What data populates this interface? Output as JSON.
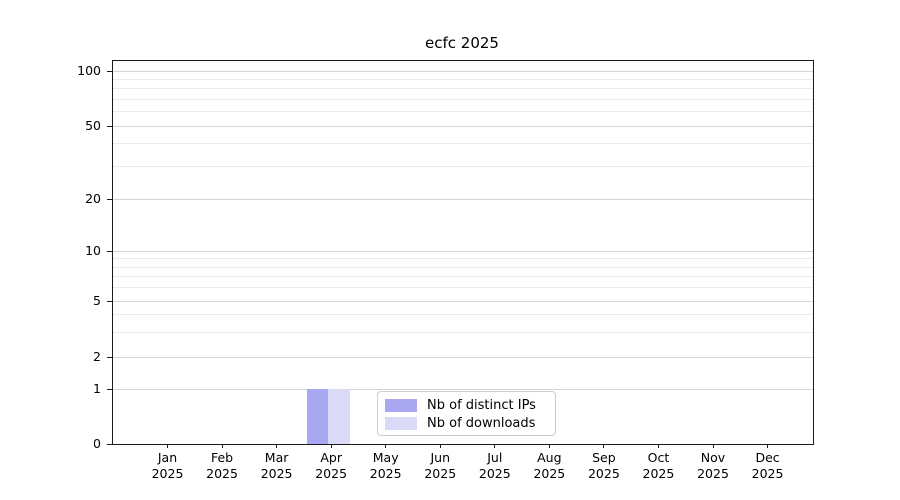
{
  "chart_data": {
    "type": "bar",
    "title": "ecfc 2025",
    "categories": [
      "Jan 2025",
      "Feb 2025",
      "Mar 2025",
      "Apr 2025",
      "May 2025",
      "Jun 2025",
      "Jul 2025",
      "Aug 2025",
      "Sep 2025",
      "Oct 2025",
      "Nov 2025",
      "Dec 2025"
    ],
    "series": [
      {
        "name": "Nb of distinct IPs",
        "color": "#a7a7f2",
        "values": [
          0,
          0,
          0,
          1,
          0,
          0,
          0,
          0,
          0,
          0,
          0,
          0
        ]
      },
      {
        "name": "Nb of downloads",
        "color": "#dadaf8",
        "values": [
          0,
          0,
          0,
          1,
          0,
          0,
          0,
          0,
          0,
          0,
          0,
          0
        ]
      }
    ],
    "xlabel": "",
    "ylabel": "",
    "yscale": "symlog",
    "ytick_values": [
      0,
      1,
      2,
      5,
      10,
      20,
      50,
      100
    ],
    "yminor_values": [
      3,
      4,
      6,
      7,
      8,
      9,
      30,
      40,
      60,
      70,
      80,
      90
    ],
    "ylim": [
      0,
      115
    ],
    "grid": "horizontal major and minor, light gray",
    "legend_position": "inside lower center"
  },
  "colors": {
    "axis": "#1a1a1a",
    "grid_major": "#d4d4d4",
    "grid_minor": "#ececec",
    "background": "#ffffff"
  }
}
